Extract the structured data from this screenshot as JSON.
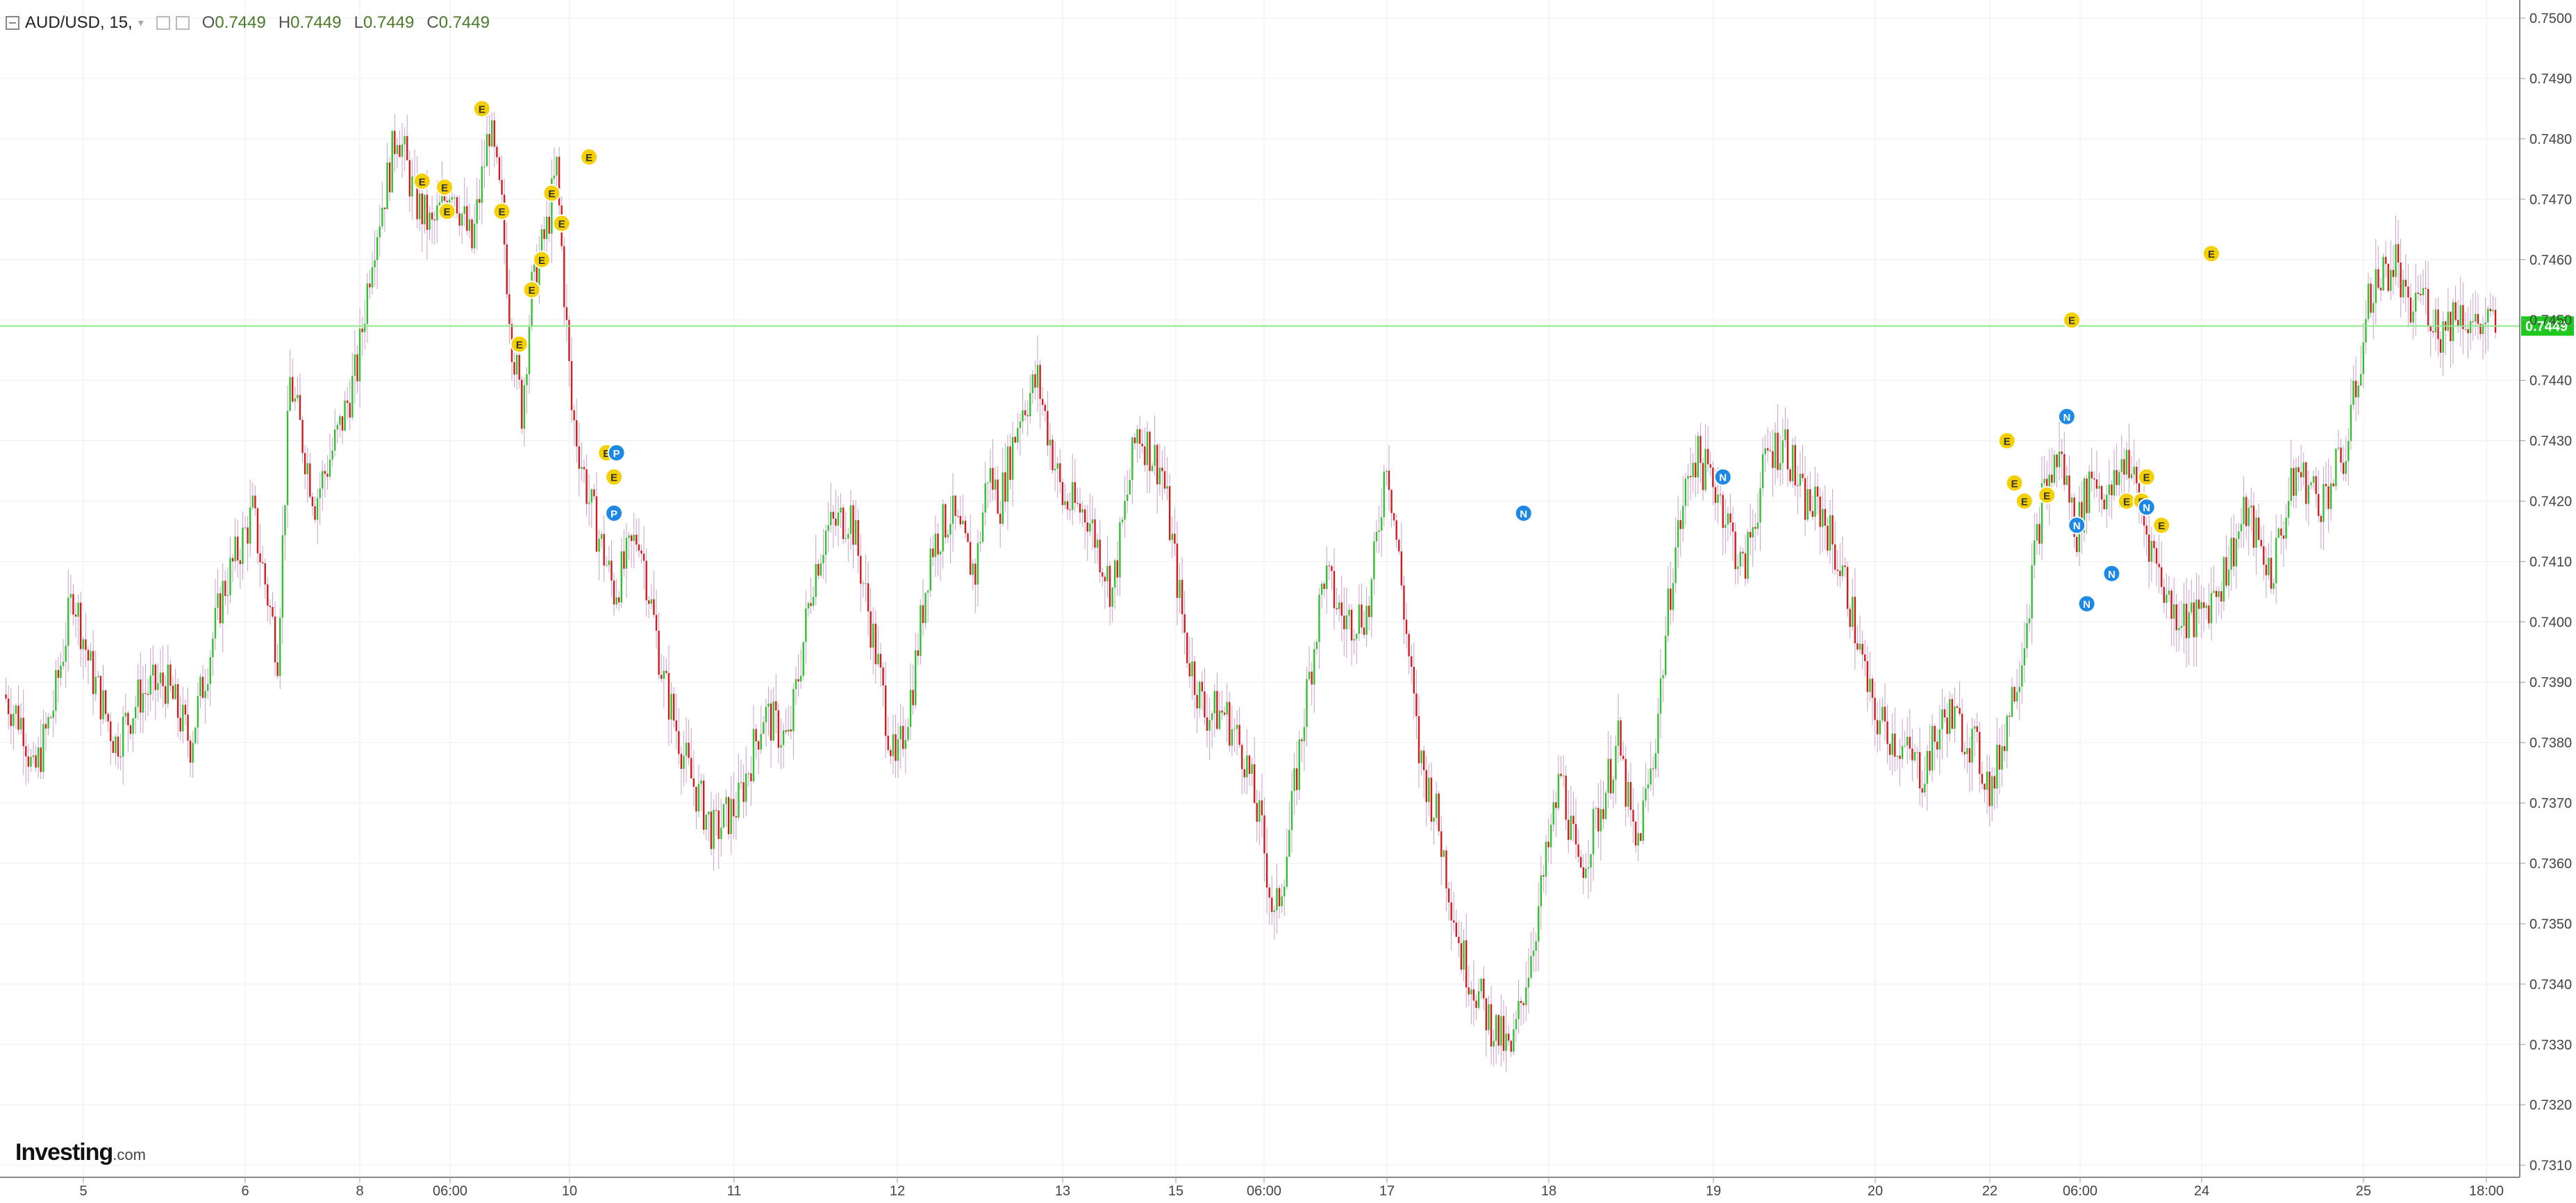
{
  "header": {
    "symbol": "AUD/USD, 15,",
    "ohlc_open_label": "O",
    "ohlc_open": "0.7449",
    "ohlc_high_label": "H",
    "ohlc_high": "0.7449",
    "ohlc_low_label": "L",
    "ohlc_low": "0.7449",
    "ohlc_close_label": "C",
    "ohlc_close": "0.7449"
  },
  "brand": {
    "name": "Investing",
    "suffix": ".com"
  },
  "colors": {
    "up": "#2fc12f",
    "down": "#d41a1a",
    "wick": "#c9a0c9",
    "price_line": "#8ee88e",
    "price_badge": "#1ec81e",
    "event_E": "#f5d000",
    "event_blue": "#1e88e5",
    "grid": "#eeeeee"
  },
  "chart_data": {
    "type": "line",
    "description_series": "AUD/USD 15-minute candlestick price path",
    "x_tick_labels": [
      "5",
      "6",
      "8",
      "06:00",
      "10",
      "11",
      "12",
      "13",
      "15",
      "06:00",
      "17",
      "18",
      "19",
      "20",
      "22",
      "06:00",
      "24",
      "25",
      "18:00"
    ],
    "y_tick_labels": [
      "0.7500",
      "0.7490",
      "0.7480",
      "0.7470",
      "0.7460",
      "0.7450",
      "0.7440",
      "0.7430",
      "0.7420",
      "0.7410",
      "0.7400",
      "0.7390",
      "0.7380",
      "0.7370",
      "0.7360",
      "0.7350",
      "0.7340",
      "0.7330",
      "0.7320",
      "0.7310"
    ],
    "ylim": [
      0.7308,
      0.7503
    ],
    "current_price": "0.7449",
    "series": [
      {
        "x_index": [
          0,
          8,
          12,
          20,
          28,
          35,
          45,
          55,
          65,
          75,
          88,
          100,
          110,
          115,
          125,
          135,
          142,
          148,
          155,
          158,
          165,
          172,
          180,
          188,
          195,
          200,
          204,
          208,
          212,
          218,
          222,
          228,
          235,
          245,
          255,
          265,
          275,
          285,
          295,
          305,
          315,
          325,
          330,
          340,
          350,
          358,
          365,
          372,
          380,
          390,
          395,
          400,
          408,
          415,
          425,
          435,
          445,
          455,
          465,
          475,
          482,
          490,
          498,
          505,
          510,
          515,
          522,
          530,
          538,
          548,
          555,
          560,
          568,
          575,
          585,
          595,
          605,
          615,
          625,
          632,
          640,
          648,
          655,
          662,
          670,
          678,
          688,
          698,
          708,
          715,
          722,
          730,
          740,
          750,
          760,
          770,
          780,
          790,
          798,
          805,
          810,
          818,
          825,
          832,
          838,
          845,
          852,
          860,
          870,
          880,
          890,
          900,
          910,
          920,
          930,
          940,
          950,
          960,
          965,
          970,
          978,
          985,
          992,
          1000
        ],
        "close": [
          0.7388,
          0.7383,
          0.7374,
          0.7386,
          0.7405,
          0.7392,
          0.738,
          0.7388,
          0.739,
          0.738,
          0.7405,
          0.7418,
          0.7395,
          0.744,
          0.742,
          0.7432,
          0.7442,
          0.7462,
          0.7475,
          0.7482,
          0.747,
          0.7465,
          0.7473,
          0.7462,
          0.7482,
          0.7468,
          0.7447,
          0.7435,
          0.7455,
          0.7465,
          0.7475,
          0.7435,
          0.742,
          0.7405,
          0.7415,
          0.739,
          0.7375,
          0.7365,
          0.737,
          0.7385,
          0.738,
          0.7408,
          0.7415,
          0.7418,
          0.7395,
          0.7375,
          0.739,
          0.7412,
          0.7418,
          0.7408,
          0.7425,
          0.742,
          0.7435,
          0.744,
          0.742,
          0.7418,
          0.7405,
          0.7432,
          0.7425,
          0.7395,
          0.7385,
          0.7385,
          0.7378,
          0.7365,
          0.735,
          0.7362,
          0.7385,
          0.7408,
          0.74,
          0.7402,
          0.7428,
          0.741,
          0.7378,
          0.7368,
          0.7345,
          0.7335,
          0.7328,
          0.735,
          0.7375,
          0.7358,
          0.7368,
          0.738,
          0.7362,
          0.7377,
          0.741,
          0.7428,
          0.7422,
          0.7408,
          0.7428,
          0.743,
          0.742,
          0.7418,
          0.7405,
          0.7385,
          0.738,
          0.7375,
          0.7385,
          0.738,
          0.7372,
          0.7386,
          0.7395,
          0.742,
          0.7428,
          0.7415,
          0.7425,
          0.742,
          0.7428,
          0.7415,
          0.7402,
          0.74,
          0.7407,
          0.7418,
          0.7408,
          0.7425,
          0.742,
          0.7428,
          0.7455,
          0.746,
          0.745,
          0.7455,
          0.7448,
          0.7452,
          0.7449,
          0.7449
        ]
      }
    ],
    "events": [
      {
        "label": "E",
        "kind": "E",
        "x_index": 192,
        "price": 0.7485
      },
      {
        "label": "E",
        "kind": "E",
        "x_index": 168,
        "price": 0.7473
      },
      {
        "label": "E",
        "kind": "E",
        "x_index": 177,
        "price": 0.7472
      },
      {
        "label": "E",
        "kind": "E",
        "x_index": 178,
        "price": 0.7468
      },
      {
        "label": "E",
        "kind": "E",
        "x_index": 200,
        "price": 0.7468
      },
      {
        "label": "E",
        "kind": "E",
        "x_index": 220,
        "price": 0.7471
      },
      {
        "label": "E",
        "kind": "E",
        "x_index": 224,
        "price": 0.7466
      },
      {
        "label": "E",
        "kind": "E",
        "x_index": 235,
        "price": 0.7477
      },
      {
        "label": "E",
        "kind": "E",
        "x_index": 216,
        "price": 0.746
      },
      {
        "label": "E",
        "kind": "E",
        "x_index": 212,
        "price": 0.7455
      },
      {
        "label": "E",
        "kind": "E",
        "x_index": 207,
        "price": 0.7446
      },
      {
        "label": "E",
        "kind": "E",
        "x_index": 242,
        "price": 0.7428
      },
      {
        "label": "P",
        "kind": "blue",
        "x_index": 246,
        "price": 0.7428
      },
      {
        "label": "E",
        "kind": "E",
        "x_index": 245,
        "price": 0.7424
      },
      {
        "label": "P",
        "kind": "blue",
        "x_index": 245,
        "price": 0.7418
      },
      {
        "label": "N",
        "kind": "blue",
        "x_index": 610,
        "price": 0.7418
      },
      {
        "label": "N",
        "kind": "blue",
        "x_index": 690,
        "price": 0.7424
      },
      {
        "label": "E",
        "kind": "E",
        "x_index": 804,
        "price": 0.743
      },
      {
        "label": "E",
        "kind": "E",
        "x_index": 807,
        "price": 0.7423
      },
      {
        "label": "E",
        "kind": "E",
        "x_index": 811,
        "price": 0.742
      },
      {
        "label": "E",
        "kind": "E",
        "x_index": 820,
        "price": 0.7421
      },
      {
        "label": "N",
        "kind": "blue",
        "x_index": 828,
        "price": 0.7434
      },
      {
        "label": "E",
        "kind": "E",
        "x_index": 830,
        "price": 0.745
      },
      {
        "label": "N",
        "kind": "blue",
        "x_index": 832,
        "price": 0.7416
      },
      {
        "label": "N",
        "kind": "blue",
        "x_index": 836,
        "price": 0.7403
      },
      {
        "label": "N",
        "kind": "blue",
        "x_index": 846,
        "price": 0.7408
      },
      {
        "label": "E",
        "kind": "E",
        "x_index": 852,
        "price": 0.742
      },
      {
        "label": "E",
        "kind": "E",
        "x_index": 858,
        "price": 0.742
      },
      {
        "label": "E",
        "kind": "E",
        "x_index": 860,
        "price": 0.7424
      },
      {
        "label": "N",
        "kind": "blue",
        "x_index": 860,
        "price": 0.7419
      },
      {
        "label": "E",
        "kind": "E",
        "x_index": 866,
        "price": 0.7416
      },
      {
        "label": "E",
        "kind": "E",
        "x_index": 886,
        "price": 0.7461
      }
    ]
  }
}
